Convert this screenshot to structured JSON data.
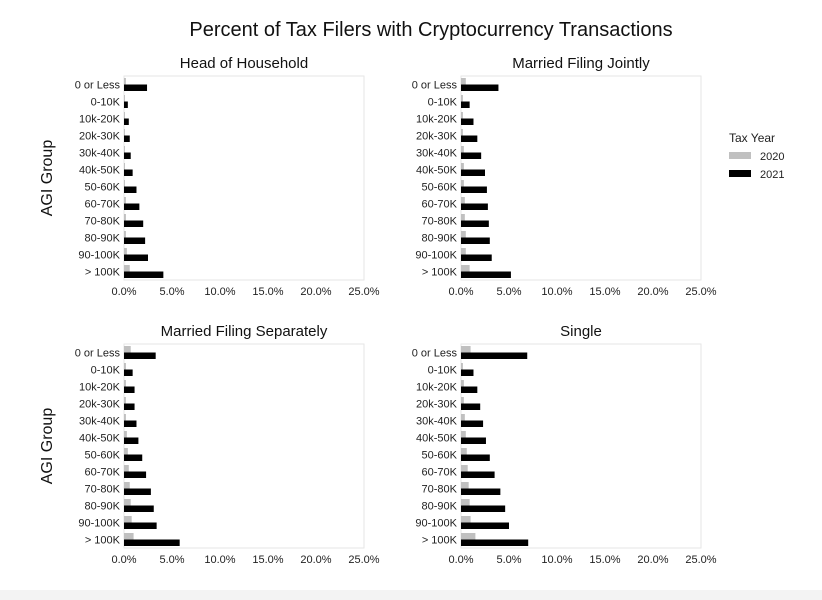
{
  "figure": {
    "title": "Percent of Tax Filers with Cryptocurrency Transactions",
    "legend_title": "Tax Year",
    "legend_items": [
      {
        "label": "2020",
        "color": "#c0c0c0"
      },
      {
        "label": "2021",
        "color": "#000000"
      }
    ]
  },
  "chart_data": [
    {
      "type": "bar",
      "orientation": "horizontal",
      "title": "Head of Household",
      "ylabel": "AGI Group",
      "xlabel": "",
      "xlim": [
        0,
        25
      ],
      "xticks": [
        "0.0%",
        "5.0%",
        "10.0%",
        "15.0%",
        "20.0%",
        "25.0%"
      ],
      "categories": [
        "0 or Less",
        "0-10K",
        "10k-20K",
        "20k-30K",
        "30k-40K",
        "40k-50K",
        "50-60K",
        "60-70K",
        "70-80K",
        "80-90K",
        "90-100K",
        "> 100K"
      ],
      "series": [
        {
          "name": "2020",
          "color": "#c0c0c0",
          "values": [
            0.2,
            0.1,
            0.1,
            0.1,
            0.1,
            0.1,
            0.1,
            0.2,
            0.2,
            0.2,
            0.3,
            0.6
          ]
        },
        {
          "name": "2021",
          "color": "#000000",
          "values": [
            2.4,
            0.4,
            0.5,
            0.6,
            0.7,
            0.9,
            1.3,
            1.6,
            2.0,
            2.2,
            2.5,
            4.1
          ]
        }
      ],
      "grid": false
    },
    {
      "type": "bar",
      "orientation": "horizontal",
      "title": "Married Filing Jointly",
      "ylabel": "",
      "xlabel": "",
      "xlim": [
        0,
        25
      ],
      "xticks": [
        "0.0%",
        "5.0%",
        "10.0%",
        "15.0%",
        "20.0%",
        "25.0%"
      ],
      "categories": [
        "0 or Less",
        "0-10K",
        "10k-20K",
        "20k-30K",
        "30k-40K",
        "40k-50K",
        "50-60K",
        "60-70K",
        "70-80K",
        "80-90K",
        "90-100K",
        "> 100K"
      ],
      "series": [
        {
          "name": "2020",
          "color": "#c0c0c0",
          "values": [
            0.5,
            0.2,
            0.2,
            0.2,
            0.3,
            0.3,
            0.3,
            0.4,
            0.4,
            0.5,
            0.5,
            0.9
          ]
        },
        {
          "name": "2021",
          "color": "#000000",
          "values": [
            3.9,
            0.9,
            1.3,
            1.7,
            2.1,
            2.5,
            2.7,
            2.8,
            2.9,
            3.0,
            3.2,
            5.2
          ]
        }
      ],
      "grid": false
    },
    {
      "type": "bar",
      "orientation": "horizontal",
      "title": "Married Filing Separately",
      "ylabel": "AGI Group",
      "xlabel": "",
      "xlim": [
        0,
        25
      ],
      "xticks": [
        "0.0%",
        "5.0%",
        "10.0%",
        "15.0%",
        "20.0%",
        "25.0%"
      ],
      "categories": [
        "0 or Less",
        "0-10K",
        "10k-20K",
        "20k-30K",
        "30k-40K",
        "40k-50K",
        "50-60K",
        "60-70K",
        "70-80K",
        "80-90K",
        "90-100K",
        "> 100K"
      ],
      "series": [
        {
          "name": "2020",
          "color": "#c0c0c0",
          "values": [
            0.7,
            0.2,
            0.2,
            0.2,
            0.2,
            0.3,
            0.4,
            0.5,
            0.6,
            0.7,
            0.8,
            1.0
          ]
        },
        {
          "name": "2021",
          "color": "#000000",
          "values": [
            3.3,
            0.9,
            1.1,
            1.1,
            1.3,
            1.5,
            1.9,
            2.3,
            2.8,
            3.1,
            3.4,
            5.8
          ]
        }
      ],
      "grid": false
    },
    {
      "type": "bar",
      "orientation": "horizontal",
      "title": "Single",
      "ylabel": "",
      "xlabel": "",
      "xlim": [
        0,
        25
      ],
      "xticks": [
        "0.0%",
        "5.0%",
        "10.0%",
        "15.0%",
        "20.0%",
        "25.0%"
      ],
      "categories": [
        "0 or Less",
        "0-10K",
        "10k-20K",
        "20k-30K",
        "30k-40K",
        "40k-50K",
        "50-60K",
        "60-70K",
        "70-80K",
        "80-90K",
        "90-100K",
        "> 100K"
      ],
      "series": [
        {
          "name": "2020",
          "color": "#c0c0c0",
          "values": [
            1.0,
            0.2,
            0.3,
            0.3,
            0.4,
            0.5,
            0.6,
            0.7,
            0.8,
            0.9,
            1.0,
            1.5
          ]
        },
        {
          "name": "2021",
          "color": "#000000",
          "values": [
            6.9,
            1.3,
            1.7,
            2.0,
            2.3,
            2.6,
            3.0,
            3.5,
            4.1,
            4.6,
            5.0,
            7.0
          ]
        }
      ],
      "grid": false
    }
  ]
}
